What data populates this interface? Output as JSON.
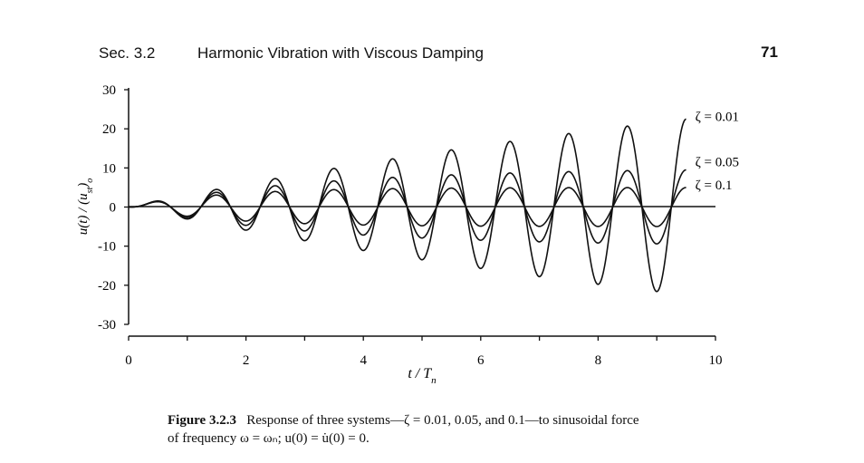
{
  "header": {
    "section": "Sec. 3.2",
    "title": "Harmonic Vibration with Viscous Damping",
    "page_number": "71"
  },
  "chart_data": {
    "type": "line",
    "title": "",
    "xlabel": "t / T_n",
    "ylabel": "u(t) / (u_st)_o",
    "xlim": [
      0,
      10
    ],
    "ylim": [
      -30,
      30
    ],
    "x_ticks": [
      "0",
      "2",
      "4",
      "6",
      "8",
      "10"
    ],
    "y_ticks": [
      "30",
      "20",
      "10",
      "0",
      "-10",
      "-20",
      "-30"
    ],
    "grid": false,
    "legend": "inline-right",
    "zero_line": true,
    "line_color": "#111111",
    "series": [
      {
        "name": "ζ = 0.01",
        "zeta": 0.01
      },
      {
        "name": "ζ = 0.05",
        "zeta": 0.05
      },
      {
        "name": "ζ = 0.1",
        "zeta": 0.1
      }
    ],
    "t_end": 9.5
  },
  "caption": {
    "label": "Figure 3.2.3",
    "line1": "Response of three systems—ζ = 0.01, 0.05, and 0.1—to sinusoidal force",
    "line2": "of frequency ω = ωₙ; u(0) = u̇(0) = 0."
  }
}
